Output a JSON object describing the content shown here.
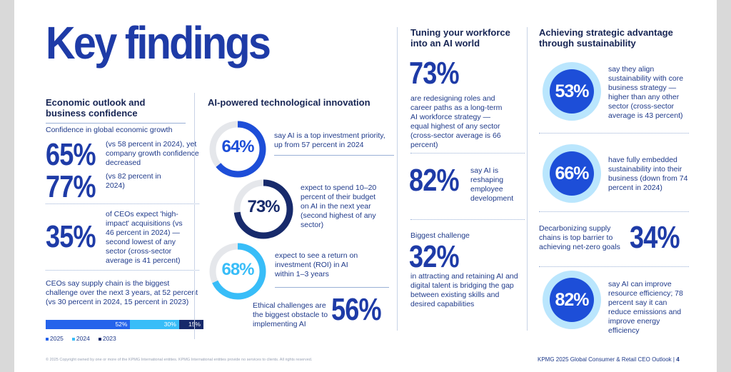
{
  "title": "Key findings",
  "col1": {
    "heading": "Economic outlook and business confidence",
    "sub": "Confidence in global economic growth",
    "stat1": {
      "value": "65%",
      "text": "(vs 58 percent in 2024), yet company growth confidence decreased"
    },
    "stat2": {
      "value": "77%",
      "text": "(vs 82 percent in 2024)"
    },
    "stat3": {
      "value": "35%",
      "text": "of CEOs expect 'high-impact' acquisitions (vs 46 percent in 2024) — second lowest of any sector (cross-sector average is 41 percent)"
    },
    "supply_text": "CEOs say supply chain is the biggest challenge over the next 3 years, at 52 percent (vs 30 percent in 2024, 15 percent in 2023)",
    "bar": {
      "segments": [
        {
          "label": "52%",
          "value": 52,
          "color": "#2563eb"
        },
        {
          "label": "30%",
          "value": 30,
          "color": "#38bdf8"
        },
        {
          "label": "15%",
          "value": 15,
          "color": "#172a6b"
        }
      ],
      "legend": [
        {
          "label": "2025",
          "color": "#2563eb"
        },
        {
          "label": "2024",
          "color": "#38bdf8"
        },
        {
          "label": "2023",
          "color": "#172a6b"
        }
      ]
    }
  },
  "col2": {
    "heading": "AI-powered technological innovation",
    "ring1": {
      "value": "64%",
      "pct": 64,
      "color": "#1d4ed8",
      "text": "say AI is a top investment priority, up from 57 percent in 2024"
    },
    "ring2": {
      "value": "73%",
      "pct": 73,
      "color": "#172a6b",
      "text": "expect to spend 10–20 percent of their budget on AI in the next year (second highest of any sector)"
    },
    "ring3": {
      "value": "68%",
      "pct": 68,
      "color": "#38bdf8",
      "text": "expect to see a return on investment (ROI) in AI within 1–3 years"
    },
    "stat": {
      "value": "56%",
      "text": "Ethical challenges are the biggest obstacle to implementing AI"
    }
  },
  "col3": {
    "heading": "Tuning your workforce into an AI world",
    "stat1": {
      "value": "73%",
      "text": "are redesigning roles and career paths as a long-term AI workforce strategy — equal highest of any sector (cross-sector average is 66 percent)"
    },
    "stat2": {
      "value": "82%",
      "text": "say AI is reshaping employee development"
    },
    "challenge_label": "Biggest challenge",
    "stat3": {
      "value": "32%",
      "text": "in attracting and retaining AI and digital talent is bridging the gap between existing skills and desired capabilities"
    }
  },
  "col4": {
    "heading": "Achieving strategic advantage through sustainability",
    "circle1": {
      "value": "53%",
      "text": "say they align sustainability with core business strategy — higher than any other sector (cross-sector average is 43 percent)"
    },
    "circle2": {
      "value": "66%",
      "text": "have fully embedded sustainability into their business (down from 74 percent in 2024)"
    },
    "stat": {
      "value": "34%",
      "text": "Decarbonizing supply chains is top barrier to achieving net-zero goals"
    },
    "circle3": {
      "value": "82%",
      "text": "say AI can improve resource efficiency; 78 percent say it can reduce emissions and improve energy efficiency"
    },
    "circle_color": "#1d4ed8",
    "halo_color": "#bae6fd"
  },
  "footer": {
    "copyright": "© 2025 Copyright owned by one or more of the KPMG International entities. KPMG International entities provide no services to clients. All rights reserved.",
    "report": "KPMG 2025 Global Consumer & Retail CEO Outlook",
    "page": "4"
  }
}
